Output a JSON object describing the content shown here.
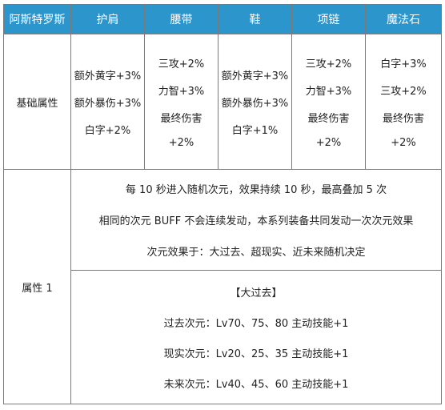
{
  "header": {
    "set_name": "阿斯特罗斯",
    "columns": [
      "护肩",
      "腰带",
      "鞋",
      "项链",
      "魔法石"
    ]
  },
  "base_row": {
    "label": "基础属性",
    "cells": [
      [
        "额外黄字+3%",
        "额外暴伤+3%",
        "白字+2%"
      ],
      [
        "三攻+2%",
        "力智+3%",
        "最终伤害",
        "+2%"
      ],
      [
        "额外黄字+3%",
        "额外暴伤+3%",
        "白字+1%"
      ],
      [
        "三攻+2%",
        "力智+3%",
        "最终伤害",
        "+2%"
      ],
      [
        "白字+3%",
        "三攻+2%",
        "最终伤害",
        "+2%"
      ]
    ]
  },
  "attr_row": {
    "label": "属性 1",
    "effect_lines": [
      "每 10 秒进入随机次元，效果持续 10 秒，最高叠加 5 次",
      "相同的次元 BUFF 不会连续发动，本系列装备共同发动一次次元效果",
      "次元效果于：大过去、超现实、近未来随机决定"
    ],
    "sub_lines": [
      "【大过去】",
      "过去次元：Lv70、75、80 主动技能+1",
      "现实次元：Lv20、25、35 主动技能+1",
      "未来次元：Lv40、45、60 主动技能+1"
    ]
  }
}
